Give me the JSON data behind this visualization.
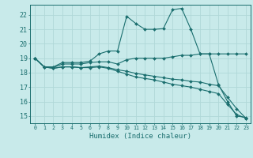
{
  "xlabel": "Humidex (Indice chaleur)",
  "background_color": "#c8eaea",
  "grid_color": "#b0d8d8",
  "line_color": "#1a6e6e",
  "xlim": [
    -0.5,
    23.5
  ],
  "ylim": [
    14.5,
    22.7
  ],
  "yticks": [
    15,
    16,
    17,
    18,
    19,
    20,
    21,
    22
  ],
  "xticks": [
    0,
    1,
    2,
    3,
    4,
    5,
    6,
    7,
    8,
    9,
    10,
    11,
    12,
    13,
    14,
    15,
    16,
    17,
    18,
    19,
    20,
    21,
    22,
    23
  ],
  "lines": [
    {
      "x": [
        0,
        1,
        2,
        3,
        4,
        5,
        6,
        7,
        8,
        9,
        10,
        11,
        12,
        13,
        14,
        15,
        16,
        17,
        18,
        19,
        20,
        21,
        22,
        23
      ],
      "y": [
        19.0,
        18.4,
        18.4,
        18.7,
        18.7,
        18.7,
        18.8,
        19.3,
        19.5,
        19.5,
        21.9,
        21.4,
        21.0,
        21.0,
        21.05,
        22.35,
        22.45,
        21.0,
        19.3,
        19.3,
        17.2,
        16.0,
        15.0,
        14.9
      ]
    },
    {
      "x": [
        0,
        1,
        2,
        3,
        4,
        5,
        6,
        7,
        8,
        9,
        10,
        11,
        12,
        13,
        14,
        15,
        16,
        17,
        18,
        19,
        20,
        21,
        22,
        23
      ],
      "y": [
        19.0,
        18.4,
        18.35,
        18.6,
        18.6,
        18.6,
        18.7,
        18.75,
        18.75,
        18.6,
        18.9,
        19.0,
        19.0,
        19.0,
        19.0,
        19.1,
        19.2,
        19.2,
        19.3,
        19.3,
        19.3,
        19.3,
        19.3,
        19.3
      ]
    },
    {
      "x": [
        0,
        1,
        2,
        3,
        4,
        5,
        6,
        7,
        8,
        9,
        10,
        11,
        12,
        13,
        14,
        15,
        16,
        17,
        18,
        19,
        20,
        21,
        22,
        23
      ],
      "y": [
        19.0,
        18.4,
        18.3,
        18.4,
        18.4,
        18.35,
        18.4,
        18.45,
        18.35,
        18.2,
        18.1,
        17.95,
        17.85,
        17.75,
        17.65,
        17.55,
        17.5,
        17.4,
        17.35,
        17.2,
        17.1,
        16.3,
        15.5,
        14.85
      ]
    },
    {
      "x": [
        0,
        1,
        2,
        3,
        4,
        5,
        6,
        7,
        8,
        9,
        10,
        11,
        12,
        13,
        14,
        15,
        16,
        17,
        18,
        19,
        20,
        21,
        22,
        23
      ],
      "y": [
        19.0,
        18.4,
        18.3,
        18.4,
        18.4,
        18.35,
        18.35,
        18.4,
        18.3,
        18.1,
        17.9,
        17.7,
        17.6,
        17.5,
        17.35,
        17.2,
        17.1,
        17.0,
        16.85,
        16.7,
        16.55,
        15.8,
        15.1,
        14.85
      ]
    }
  ]
}
